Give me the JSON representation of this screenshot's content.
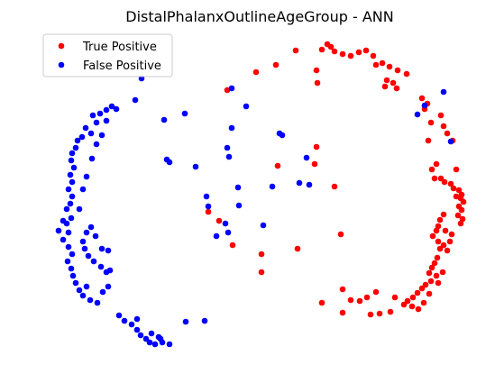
{
  "chart_data": {
    "type": "scatter",
    "title": "DistalPhalanxOutlineAgeGroup - ANN",
    "xlabel": "",
    "ylabel": "",
    "axes_visible": false,
    "grid": false,
    "legend_position": "top-left",
    "series": [
      {
        "name": "True Positive",
        "color": "#ff0000",
        "points": [
          [
            363,
            49
          ],
          [
            367,
            52
          ],
          [
            371,
            57
          ],
          [
            357,
            55
          ],
          [
            380,
            60
          ],
          [
            389,
            62
          ],
          [
            398,
            58
          ],
          [
            406,
            56
          ],
          [
            414,
            62
          ],
          [
            417,
            72
          ],
          [
            424,
            70
          ],
          [
            432,
            74
          ],
          [
            441,
            78
          ],
          [
            451,
            82
          ],
          [
            429,
            89
          ],
          [
            436,
            92
          ],
          [
            440,
            98
          ],
          [
            427,
            96
          ],
          [
            468,
            109
          ],
          [
            474,
            115
          ],
          [
            471,
            121
          ],
          [
            478,
            136
          ],
          [
            489,
            128
          ],
          [
            492,
            140
          ],
          [
            496,
            148
          ],
          [
            502,
            156
          ],
          [
            475,
            156
          ],
          [
            484,
            182
          ],
          [
            479,
            188
          ],
          [
            506,
            188
          ],
          [
            482,
            198
          ],
          [
            489,
            198
          ],
          [
            493,
            202
          ],
          [
            500,
            204
          ],
          [
            503,
            209
          ],
          [
            509,
            211
          ],
          [
            512,
            216
          ],
          [
            506,
            218
          ],
          [
            511,
            220
          ],
          [
            514,
            224
          ],
          [
            509,
            229
          ],
          [
            512,
            233
          ],
          [
            508,
            239
          ],
          [
            513,
            243
          ],
          [
            511,
            248
          ],
          [
            492,
            238
          ],
          [
            488,
            244
          ],
          [
            486,
            251
          ],
          [
            484,
            256
          ],
          [
            480,
            262
          ],
          [
            486,
            268
          ],
          [
            492,
            272
          ],
          [
            488,
            276
          ],
          [
            496,
            278
          ],
          [
            499,
            268
          ],
          [
            501,
            260
          ],
          [
            494,
            256
          ],
          [
            485,
            286
          ],
          [
            482,
            292
          ],
          [
            479,
            297
          ],
          [
            476,
            303
          ],
          [
            484,
            306
          ],
          [
            478,
            312
          ],
          [
            472,
            316
          ],
          [
            468,
            320
          ],
          [
            463,
            325
          ],
          [
            458,
            330
          ],
          [
            452,
            334
          ],
          [
            448,
            338
          ],
          [
            457,
            340
          ],
          [
            464,
            343
          ],
          [
            470,
            336
          ],
          [
            476,
            326
          ],
          [
            486,
            314
          ],
          [
            491,
            302
          ],
          [
            417,
            324
          ],
          [
            407,
            330
          ],
          [
            399,
            334
          ],
          [
            389,
            333
          ],
          [
            380,
            321
          ],
          [
            357,
            336
          ],
          [
            380,
            347
          ],
          [
            411,
            349
          ],
          [
            421,
            348
          ],
          [
            433,
            346
          ],
          [
            438,
            330
          ],
          [
            351,
            163
          ],
          [
            349,
            182
          ],
          [
            308,
            184
          ],
          [
            252,
            100
          ],
          [
            284,
            80
          ],
          [
            306,
            72
          ],
          [
            328,
            56
          ],
          [
            351,
            78
          ],
          [
            352,
            92
          ],
          [
            371,
            207
          ],
          [
            378,
            260
          ],
          [
            330,
            276
          ],
          [
            290,
            282
          ],
          [
            290,
            302
          ],
          [
            258,
            272
          ],
          [
            243,
            245
          ],
          [
            231,
            235
          ]
        ]
      },
      {
        "name": "False Positive",
        "color": "#0000ff",
        "points": [
          [
            157,
            87
          ],
          [
            150,
            111
          ],
          [
            182,
            133
          ],
          [
            205,
            126
          ],
          [
            257,
            98
          ],
          [
            273,
            118
          ],
          [
            257,
            142
          ],
          [
            310,
            148
          ],
          [
            313,
            150
          ],
          [
            252,
            164
          ],
          [
            254,
            174
          ],
          [
            185,
            177
          ],
          [
            188,
            180
          ],
          [
            217,
            185
          ],
          [
            264,
            208
          ],
          [
            229,
            218
          ],
          [
            231,
            229
          ],
          [
            265,
            228
          ],
          [
            240,
            262
          ],
          [
            253,
            258
          ],
          [
            250,
            248
          ],
          [
            292,
            250
          ],
          [
            302,
            207
          ],
          [
            332,
            203
          ],
          [
            343,
            205
          ],
          [
            340,
            175
          ],
          [
            463,
            127
          ],
          [
            471,
            117
          ],
          [
            492,
            102
          ],
          [
            500,
            157
          ],
          [
            124,
            118
          ],
          [
            129,
            121
          ],
          [
            118,
            122
          ],
          [
            111,
            126
          ],
          [
            103,
            128
          ],
          [
            107,
            136
          ],
          [
            95,
            142
          ],
          [
            101,
            148
          ],
          [
            91,
            152
          ],
          [
            86,
            156
          ],
          [
            84,
            164
          ],
          [
            80,
            170
          ],
          [
            79,
            178
          ],
          [
            82,
            186
          ],
          [
            78,
            194
          ],
          [
            80,
            202
          ],
          [
            76,
            210
          ],
          [
            80,
            218
          ],
          [
            78,
            226
          ],
          [
            74,
            232
          ],
          [
            79,
            242
          ],
          [
            74,
            248
          ],
          [
            76,
            258
          ],
          [
            70,
            266
          ],
          [
            76,
            274
          ],
          [
            80,
            282
          ],
          [
            75,
            290
          ],
          [
            79,
            298
          ],
          [
            81,
            306
          ],
          [
            84,
            314
          ],
          [
            88,
            322
          ],
          [
            96,
            318
          ],
          [
            92,
            328
          ],
          [
            100,
            333
          ],
          [
            108,
            336
          ],
          [
            114,
            324
          ],
          [
            120,
            318
          ],
          [
            118,
            302
          ],
          [
            112,
            296
          ],
          [
            104,
            290
          ],
          [
            98,
            284
          ],
          [
            94,
            276
          ],
          [
            92,
            268
          ],
          [
            96,
            258
          ],
          [
            101,
            252
          ],
          [
            106,
            262
          ],
          [
            113,
            276
          ],
          [
            120,
            278
          ],
          [
            122,
            300
          ],
          [
            88,
            232
          ],
          [
            92,
            210
          ],
          [
            96,
            196
          ],
          [
            102,
            176
          ],
          [
            107,
            160
          ],
          [
            113,
            150
          ],
          [
            118,
            134
          ],
          [
            132,
            350
          ],
          [
            138,
            356
          ],
          [
            146,
            360
          ],
          [
            152,
            366
          ],
          [
            156,
            372
          ],
          [
            162,
            376
          ],
          [
            166,
            380
          ],
          [
            172,
            382
          ],
          [
            180,
            380
          ],
          [
            188,
            382
          ],
          [
            178,
            376
          ],
          [
            168,
            370
          ],
          [
            176,
            374
          ],
          [
            152,
            354
          ],
          [
            206,
            357
          ],
          [
            227,
            356
          ],
          [
            65,
            256
          ],
          [
            70,
            245
          ]
        ]
      }
    ]
  }
}
